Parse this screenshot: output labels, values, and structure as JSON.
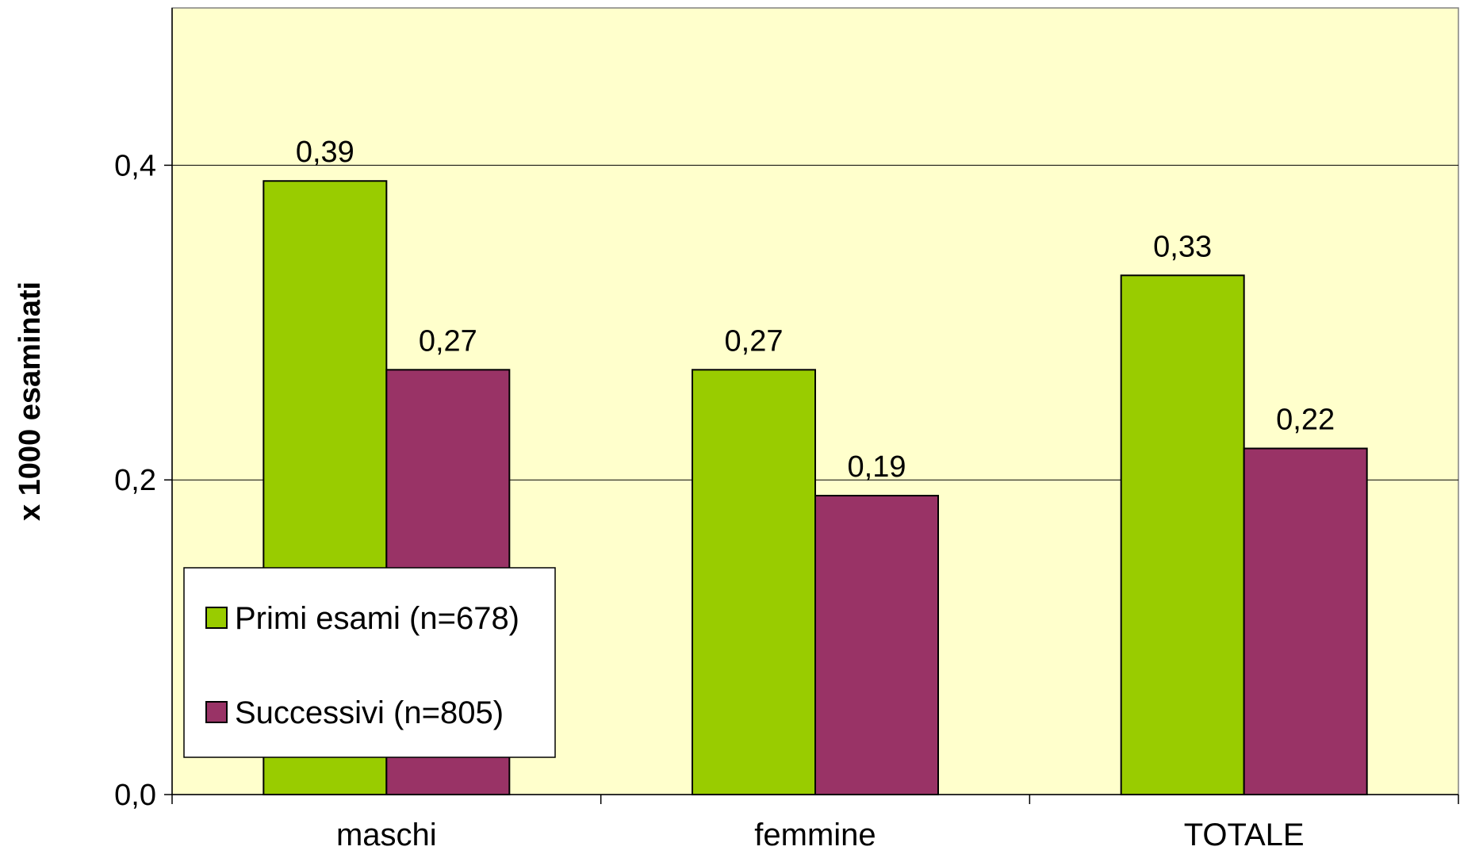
{
  "chart_data": {
    "type": "bar",
    "categories": [
      "maschi",
      "femmine",
      "TOTALE"
    ],
    "series": [
      {
        "name": "Primi esami (n=678)",
        "values": [
          0.39,
          0.27,
          0.33
        ],
        "labels": [
          "0,39",
          "0,27",
          "0,33"
        ],
        "color": "#99CC00"
      },
      {
        "name": "Successivi (n=805)",
        "values": [
          0.27,
          0.19,
          0.22
        ],
        "labels": [
          "0,27",
          "0,19",
          "0,22"
        ],
        "color": "#993366"
      }
    ],
    "title": "",
    "xlabel": "",
    "ylabel": "x 1000 esaminati",
    "ylim": [
      0,
      0.5
    ],
    "yticks": [
      0,
      0.2,
      0.4
    ],
    "ytick_labels": [
      "0,0",
      "0,2",
      "0,4"
    ],
    "grid": true,
    "legend_position": "bottom-left inside plot",
    "plot_background": "#FFFFCC"
  }
}
